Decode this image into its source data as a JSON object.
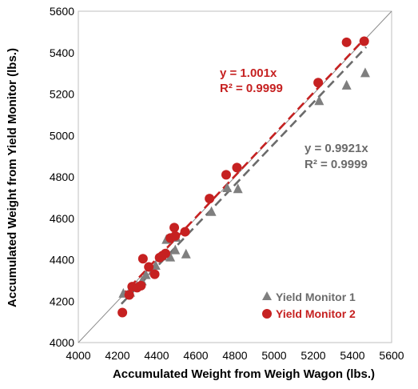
{
  "chart_data": {
    "type": "scatter",
    "title": "",
    "xlabel": "Accumulated Weight from Weigh Wagon (lbs.)",
    "ylabel": "Accumulated Weight from Yield Monitor (lbs.)",
    "xlim": [
      4000,
      5600
    ],
    "ylim": [
      4000,
      5600
    ],
    "xticks": [
      4000,
      4200,
      4400,
      4600,
      4800,
      5000,
      5200,
      5400,
      5600
    ],
    "yticks": [
      4000,
      4200,
      4400,
      4600,
      4800,
      5000,
      5200,
      5400,
      5600
    ],
    "grid": false,
    "legend_position": "bottom-right",
    "reference_line": "1:1",
    "series": [
      {
        "name": "Yield Monitor 1",
        "marker": "triangle",
        "color": "#7f7f7f",
        "points": [
          [
            4230,
            4240
          ],
          [
            4265,
            4245
          ],
          [
            4300,
            4275
          ],
          [
            4325,
            4300
          ],
          [
            4345,
            4330
          ],
          [
            4380,
            4350
          ],
          [
            4395,
            4375
          ],
          [
            4430,
            4420
          ],
          [
            4450,
            4500
          ],
          [
            4470,
            4415
          ],
          [
            4495,
            4450
          ],
          [
            4500,
            4510
          ],
          [
            4550,
            4430
          ],
          [
            4680,
            4635
          ],
          [
            4760,
            4750
          ],
          [
            4815,
            4745
          ],
          [
            5230,
            5170
          ],
          [
            5370,
            5245
          ],
          [
            5465,
            5305
          ]
        ],
        "trendline": {
          "slope": 0.9921,
          "equation": "y = 0.9921x",
          "r2": "R² = 0.9999"
        }
      },
      {
        "name": "Yield Monitor 2",
        "marker": "circle",
        "color": "#c62121",
        "points": [
          [
            4225,
            4145
          ],
          [
            4260,
            4230
          ],
          [
            4275,
            4270
          ],
          [
            4300,
            4265
          ],
          [
            4320,
            4275
          ],
          [
            4330,
            4405
          ],
          [
            4360,
            4365
          ],
          [
            4390,
            4330
          ],
          [
            4415,
            4410
          ],
          [
            4430,
            4420
          ],
          [
            4445,
            4430
          ],
          [
            4470,
            4505
          ],
          [
            4490,
            4555
          ],
          [
            4495,
            4515
          ],
          [
            4545,
            4535
          ],
          [
            4670,
            4695
          ],
          [
            4755,
            4810
          ],
          [
            4810,
            4845
          ],
          [
            5225,
            5255
          ],
          [
            5370,
            5450
          ],
          [
            5460,
            5455
          ]
        ],
        "trendline": {
          "slope": 1.001,
          "equation": "y = 1.001x",
          "r2": "R² = 0.9999"
        }
      }
    ]
  }
}
